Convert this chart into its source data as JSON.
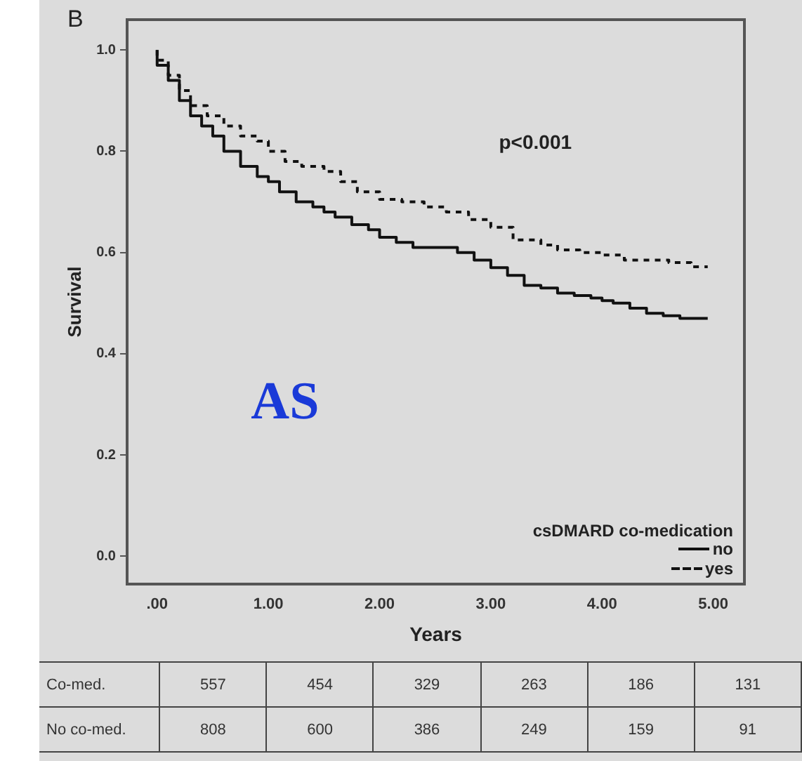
{
  "chart_data": {
    "type": "step",
    "title": "B",
    "xlabel": "Years",
    "ylabel": "Survival",
    "legend_title": "csDMARD co-medication",
    "legend": "bottom right",
    "grid": false,
    "marker": "none",
    "xlim": [
      -0.27,
      5.28
    ],
    "ylim": [
      -0.055,
      1.06
    ],
    "xticks": [
      {
        "value": 0,
        "label": ".00"
      },
      {
        "value": 1,
        "label": "1.00"
      },
      {
        "value": 2,
        "label": "2.00"
      },
      {
        "value": 3,
        "label": "3.00"
      },
      {
        "value": 4,
        "label": "4.00"
      },
      {
        "value": 5,
        "label": "5.00"
      }
    ],
    "yticks": [
      {
        "value": 0,
        "label": "0.0"
      },
      {
        "value": 0.2,
        "label": "0.2"
      },
      {
        "value": 0.4,
        "label": "0.4"
      },
      {
        "value": 0.6,
        "label": "0.6"
      },
      {
        "value": 0.8,
        "label": "0.8"
      },
      {
        "value": 1,
        "label": "1.0"
      }
    ],
    "series": [
      {
        "name": "no",
        "color": "#111111",
        "line_style": "solid",
        "x": [
          0,
          0.1,
          0.2,
          0.3,
          0.4,
          0.5,
          0.6,
          0.75,
          0.9,
          1.0,
          1.1,
          1.25,
          1.4,
          1.5,
          1.6,
          1.75,
          1.9,
          2.0,
          2.15,
          2.3,
          2.5,
          2.7,
          2.85,
          3.0,
          3.15,
          3.3,
          3.45,
          3.6,
          3.75,
          3.9,
          4.0,
          4.1,
          4.25,
          4.4,
          4.55,
          4.7,
          4.85,
          4.95
        ],
        "values": [
          1.0,
          0.97,
          0.94,
          0.9,
          0.87,
          0.85,
          0.83,
          0.8,
          0.77,
          0.75,
          0.74,
          0.72,
          0.7,
          0.69,
          0.68,
          0.67,
          0.655,
          0.645,
          0.63,
          0.62,
          0.61,
          0.61,
          0.6,
          0.585,
          0.57,
          0.555,
          0.535,
          0.53,
          0.52,
          0.515,
          0.51,
          0.505,
          0.5,
          0.49,
          0.48,
          0.475,
          0.47,
          0.47
        ]
      },
      {
        "name": "yes",
        "color": "#111111",
        "line_style": "dashed",
        "x": [
          0,
          0.1,
          0.2,
          0.3,
          0.45,
          0.6,
          0.75,
          0.9,
          1.0,
          1.15,
          1.3,
          1.5,
          1.65,
          1.8,
          2.0,
          2.2,
          2.4,
          2.6,
          2.8,
          3.0,
          3.2,
          3.45,
          3.6,
          3.8,
          4.0,
          4.2,
          4.45,
          4.6,
          4.8,
          4.95
        ],
        "values": [
          1.0,
          0.98,
          0.95,
          0.92,
          0.89,
          0.87,
          0.85,
          0.83,
          0.82,
          0.8,
          0.78,
          0.77,
          0.76,
          0.74,
          0.72,
          0.705,
          0.7,
          0.69,
          0.68,
          0.665,
          0.65,
          0.625,
          0.615,
          0.605,
          0.6,
          0.595,
          0.585,
          0.585,
          0.58,
          0.572
        ]
      }
    ],
    "annotations": [
      "p<0.001",
      "AS",
      "Co-med.",
      "557",
      "454",
      "329",
      "263",
      "186",
      "131",
      "No co-med.",
      "808",
      "600",
      "386",
      "249",
      "159",
      "91"
    ]
  }
}
